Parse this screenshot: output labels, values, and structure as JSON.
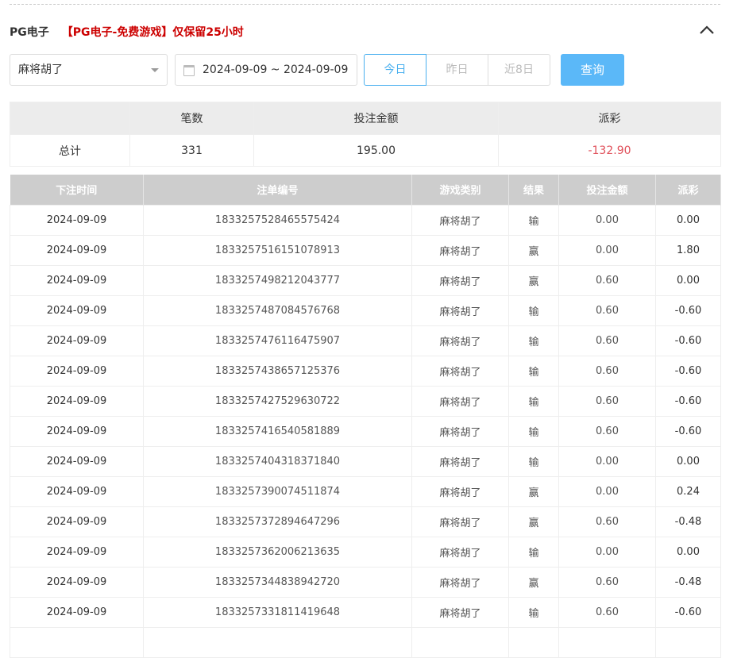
{
  "header": {
    "title": "PG电子",
    "notice": "【PG电子-免费游戏】仅保留25小时"
  },
  "filters": {
    "game": "麻将胡了",
    "date_range": "2024-09-09 ~ 2024-09-09",
    "quick": [
      "今日",
      "昨日",
      "近8日"
    ],
    "active_quick": "今日",
    "query_label": "查询"
  },
  "summary": {
    "headers": [
      "",
      "笔数",
      "投注金额",
      "派彩"
    ],
    "row": [
      "总计",
      "331",
      "195.00",
      "-132.90"
    ]
  },
  "details": {
    "headers": [
      "下注时间",
      "注单编号",
      "游戏类别",
      "结果",
      "投注金额",
      "派彩"
    ],
    "rows": [
      [
        "2024-09-09",
        "1833257528465575424",
        "麻将胡了",
        "输",
        "0.00",
        "0.00"
      ],
      [
        "2024-09-09",
        "1833257516151078913",
        "麻将胡了",
        "赢",
        "0.00",
        "1.80"
      ],
      [
        "2024-09-09",
        "1833257498212043777",
        "麻将胡了",
        "赢",
        "0.60",
        "0.00"
      ],
      [
        "2024-09-09",
        "1833257487084576768",
        "麻将胡了",
        "输",
        "0.60",
        "-0.60"
      ],
      [
        "2024-09-09",
        "1833257476116475907",
        "麻将胡了",
        "输",
        "0.60",
        "-0.60"
      ],
      [
        "2024-09-09",
        "1833257438657125376",
        "麻将胡了",
        "输",
        "0.60",
        "-0.60"
      ],
      [
        "2024-09-09",
        "1833257427529630722",
        "麻将胡了",
        "输",
        "0.60",
        "-0.60"
      ],
      [
        "2024-09-09",
        "1833257416540581889",
        "麻将胡了",
        "输",
        "0.60",
        "-0.60"
      ],
      [
        "2024-09-09",
        "1833257404318371840",
        "麻将胡了",
        "输",
        "0.00",
        "0.00"
      ],
      [
        "2024-09-09",
        "1833257390074511874",
        "麻将胡了",
        "赢",
        "0.00",
        "0.24"
      ],
      [
        "2024-09-09",
        "1833257372894647296",
        "麻将胡了",
        "赢",
        "0.60",
        "-0.48"
      ],
      [
        "2024-09-09",
        "1833257362006213635",
        "麻将胡了",
        "输",
        "0.00",
        "0.00"
      ],
      [
        "2024-09-09",
        "1833257344838942720",
        "麻将胡了",
        "赢",
        "0.60",
        "-0.48"
      ],
      [
        "2024-09-09",
        "1833257331811419648",
        "麻将胡了",
        "输",
        "0.60",
        "-0.60"
      ],
      [
        "",
        "",
        "",
        "",
        "",
        ""
      ]
    ]
  },
  "colors": {
    "accent": "#5bb8f8",
    "negative": "#e0505a",
    "warning": "#cc0000"
  }
}
